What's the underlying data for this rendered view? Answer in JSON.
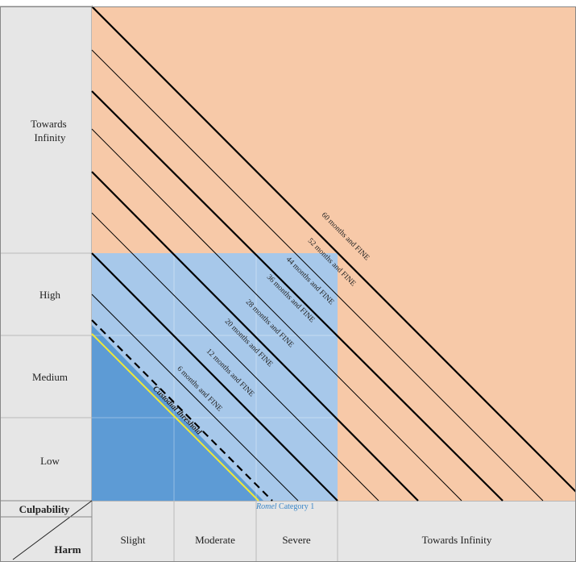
{
  "y_axis": {
    "bands": [
      "Towards Infinity",
      "High",
      "Medium",
      "Low"
    ]
  },
  "x_axis": {
    "bands": [
      "Slight",
      "Moderate",
      "Severe",
      "Towards Infinity"
    ]
  },
  "corner": {
    "culpability_label": "Culpability",
    "harm_label": "Harm"
  },
  "threshold": {
    "label": "Custodial threshold",
    "color": "#f0e838"
  },
  "romel": {
    "label_italic": "Romel",
    "label_rest": " Category 1",
    "color": "#3a86c8"
  },
  "sentence_lines": [
    {
      "label": "6 months and FINE"
    },
    {
      "label": "12 months and FINE"
    },
    {
      "label": "20 months and FINE"
    },
    {
      "label": "28 months and FINE"
    },
    {
      "label": "36 months and FINE"
    },
    {
      "label": "44 months and FINE"
    },
    {
      "label": "52 months and FINE"
    },
    {
      "label": "60 months and FINE"
    }
  ],
  "colors": {
    "peach_region": "#f7c9a8",
    "light_blue_region": "#a7c8ea",
    "dark_blue_region": "#5d9bd5",
    "axis_panel": "#e6e6e6"
  }
}
